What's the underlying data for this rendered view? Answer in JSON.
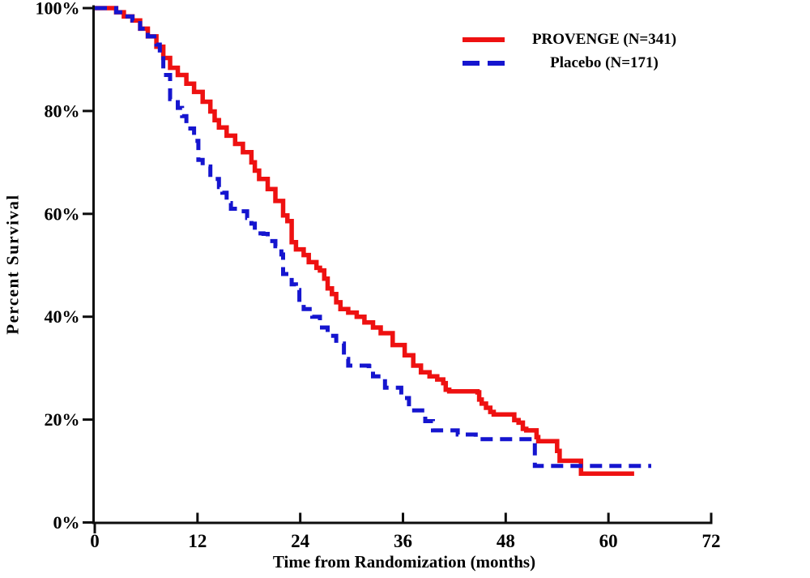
{
  "figure": {
    "background": "#ffffff",
    "axis_color": "#0d0d0d"
  },
  "legend": {
    "position": "top-right",
    "items": [
      {
        "label": "PROVENGE (N=341)",
        "color": "#ee1111",
        "style": "solid"
      },
      {
        "label": "Placebo (N=171)",
        "color": "#1515cf",
        "style": "dashed"
      }
    ]
  },
  "chart_data": {
    "type": "line",
    "subtype": "kaplan-meier-step-survival",
    "title": "",
    "xlabel": "Time from Randomization (months)",
    "ylabel": "Percent Survival",
    "xlim": [
      0,
      72
    ],
    "ylim": [
      0,
      100
    ],
    "xticks": [
      0,
      12,
      24,
      36,
      48,
      60,
      72
    ],
    "yticks": [
      0,
      20,
      40,
      60,
      80,
      100
    ],
    "ytick_labels": [
      "0%",
      "20%",
      "40%",
      "60%",
      "80%",
      "100%"
    ],
    "grid": false,
    "legend_position": "top-right",
    "series": [
      {
        "name": "PROVENGE (N=341)",
        "color": "#ee1111",
        "line_style": "solid",
        "line_width": 5.5,
        "points": [
          [
            0,
            100
          ],
          [
            1.9,
            100
          ],
          [
            2.5,
            99.2
          ],
          [
            3.4,
            98.4
          ],
          [
            4.4,
            97.6
          ],
          [
            5.3,
            96.0
          ],
          [
            6.2,
            94.5
          ],
          [
            7.2,
            92.5
          ],
          [
            8.0,
            90.3
          ],
          [
            8.8,
            88.4
          ],
          [
            9.7,
            87.0
          ],
          [
            10.7,
            85.3
          ],
          [
            11.6,
            83.7
          ],
          [
            12.6,
            81.8
          ],
          [
            13.5,
            79.9
          ],
          [
            14.0,
            78.2
          ],
          [
            14.5,
            76.8
          ],
          [
            15.4,
            75.2
          ],
          [
            16.4,
            73.6
          ],
          [
            17.3,
            72.0
          ],
          [
            18.3,
            70.0
          ],
          [
            18.7,
            68.4
          ],
          [
            19.2,
            66.8
          ],
          [
            20.2,
            64.8
          ],
          [
            21.1,
            62.5
          ],
          [
            22.0,
            59.7
          ],
          [
            22.5,
            58.6
          ],
          [
            23.0,
            54.5
          ],
          [
            23.5,
            53.1
          ],
          [
            24.4,
            52.0
          ],
          [
            25.0,
            50.6
          ],
          [
            25.9,
            49.5
          ],
          [
            26.3,
            49.0
          ],
          [
            26.8,
            47.4
          ],
          [
            27.2,
            45.5
          ],
          [
            27.7,
            44.4
          ],
          [
            28.2,
            42.8
          ],
          [
            28.7,
            41.5
          ],
          [
            29.6,
            40.8
          ],
          [
            30.6,
            40.0
          ],
          [
            31.5,
            38.9
          ],
          [
            32.5,
            37.9
          ],
          [
            33.4,
            36.8
          ],
          [
            34.8,
            34.5
          ],
          [
            36.2,
            32.5
          ],
          [
            37.2,
            30.5
          ],
          [
            38.1,
            29.2
          ],
          [
            39.1,
            28.4
          ],
          [
            40.0,
            27.8
          ],
          [
            40.7,
            27.1
          ],
          [
            41.0,
            25.8
          ],
          [
            41.4,
            25.5
          ],
          [
            44.7,
            25.3
          ],
          [
            44.9,
            23.9
          ],
          [
            45.2,
            23.1
          ],
          [
            45.7,
            22.3
          ],
          [
            46.2,
            21.5
          ],
          [
            46.6,
            21.0
          ],
          [
            48.5,
            21.0
          ],
          [
            49.0,
            19.9
          ],
          [
            49.5,
            19.4
          ],
          [
            50.0,
            18.2
          ],
          [
            50.4,
            17.9
          ],
          [
            51.4,
            17.9
          ],
          [
            51.6,
            16.6
          ],
          [
            51.8,
            15.8
          ],
          [
            53.7,
            15.8
          ],
          [
            54.0,
            13.9
          ],
          [
            54.3,
            12.0
          ],
          [
            56.6,
            12.0
          ],
          [
            56.8,
            9.5
          ],
          [
            63.0,
            9.5
          ]
        ]
      },
      {
        "name": "Placebo (N=171)",
        "color": "#1515cf",
        "line_style": "dashed",
        "line_width": 5,
        "points": [
          [
            0,
            100
          ],
          [
            1.9,
            100
          ],
          [
            2.5,
            99.2
          ],
          [
            3.4,
            98.4
          ],
          [
            4.4,
            97.6
          ],
          [
            5.3,
            96.0
          ],
          [
            6.2,
            94.5
          ],
          [
            7.2,
            92.9
          ],
          [
            7.6,
            91.0
          ],
          [
            8.0,
            87.0
          ],
          [
            8.8,
            82.3
          ],
          [
            9.7,
            80.6
          ],
          [
            10.2,
            79.0
          ],
          [
            10.7,
            76.6
          ],
          [
            11.6,
            74.2
          ],
          [
            12.1,
            70.5
          ],
          [
            12.6,
            69.2
          ],
          [
            13.5,
            66.8
          ],
          [
            14.5,
            65.2
          ],
          [
            14.9,
            64.1
          ],
          [
            15.4,
            62.1
          ],
          [
            15.9,
            61.0
          ],
          [
            16.8,
            60.5
          ],
          [
            17.8,
            59.2
          ],
          [
            18.3,
            58.1
          ],
          [
            18.7,
            56.2
          ],
          [
            19.7,
            56.1
          ],
          [
            20.2,
            54.7
          ],
          [
            21.1,
            53.7
          ],
          [
            21.8,
            52.1
          ],
          [
            22.0,
            48.3
          ],
          [
            23.0,
            46.3
          ],
          [
            23.5,
            45.2
          ],
          [
            23.9,
            42.7
          ],
          [
            24.4,
            41.5
          ],
          [
            25.4,
            40.0
          ],
          [
            26.3,
            37.9
          ],
          [
            27.2,
            36.3
          ],
          [
            28.2,
            34.8
          ],
          [
            29.1,
            31.8
          ],
          [
            29.6,
            30.5
          ],
          [
            32.0,
            30.4
          ],
          [
            32.5,
            28.4
          ],
          [
            33.9,
            26.2
          ],
          [
            35.8,
            24.2
          ],
          [
            36.7,
            21.8
          ],
          [
            38.6,
            19.7
          ],
          [
            39.5,
            17.9
          ],
          [
            42.2,
            17.9
          ],
          [
            42.4,
            17.1
          ],
          [
            44.3,
            17.1
          ],
          [
            44.5,
            16.2
          ],
          [
            51.2,
            16.2
          ],
          [
            51.4,
            11.0
          ],
          [
            65.0,
            11.0
          ]
        ]
      }
    ]
  }
}
